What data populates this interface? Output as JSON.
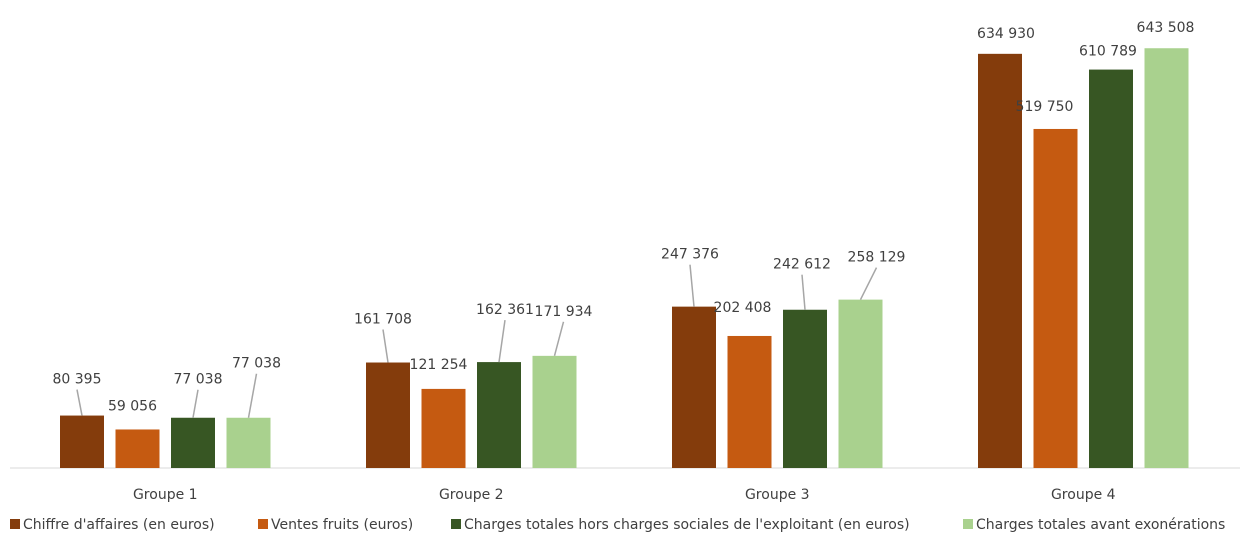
{
  "chart_data": {
    "type": "bar",
    "categories": [
      "Groupe 1",
      "Groupe 2",
      "Groupe 3",
      "Groupe 4"
    ],
    "series": [
      {
        "name": "Chiffre d'affaires (en euros)",
        "color": "#843C0C",
        "values": [
          80395,
          161708,
          247376,
          634930
        ],
        "labels": [
          "80 395",
          "161 708",
          "247 376",
          "634 930"
        ]
      },
      {
        "name": "Ventes fruits (euros)",
        "color": "#C55A11",
        "values": [
          59056,
          121254,
          202408,
          519750
        ],
        "labels": [
          "59 056",
          "121 254",
          "202 408",
          "519 750"
        ]
      },
      {
        "name": "Charges totales hors charges sociales de l'exploitant (en euros)",
        "color": "#375623",
        "values": [
          77038,
          162361,
          242612,
          610789
        ],
        "labels": [
          "77 038",
          "162 361",
          "242 612",
          "610 789"
        ]
      },
      {
        "name": "Charges totales avant exonérations",
        "color": "#A9D18E",
        "values": [
          77038,
          171934,
          258129,
          643508
        ],
        "labels": [
          "77 038",
          "171 934",
          "258 129",
          "643 508"
        ]
      }
    ],
    "ylim": [
      0,
      650000
    ],
    "grid": false,
    "legend_position": "bottom"
  }
}
